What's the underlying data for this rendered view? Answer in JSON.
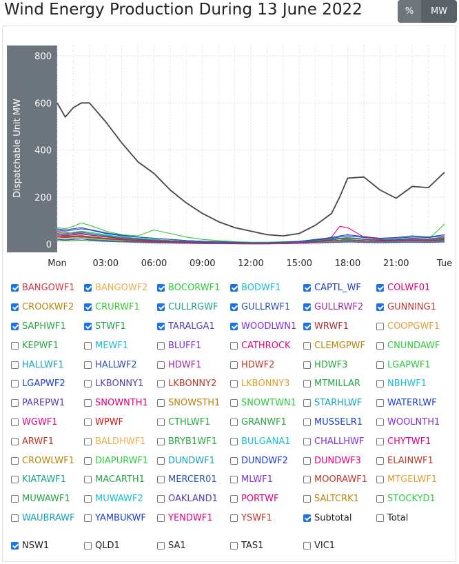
{
  "title": "Wind Energy Production During 13 June 2022",
  "toggle": {
    "percent_label": "%",
    "mw_label": "MW"
  },
  "chart_data": {
    "type": "line",
    "ylabel": "Dispatchable Unit MW",
    "ylim": [
      0,
      800
    ],
    "yticks": [
      0,
      200,
      400,
      600,
      800
    ],
    "x_ticks": [
      "Mon",
      "03:00",
      "06:00",
      "09:00",
      "12:00",
      "15:00",
      "18:00",
      "21:00",
      "Tue"
    ],
    "x_hours": [
      0,
      0.5,
      1,
      1.5,
      2,
      3,
      4,
      5,
      6,
      7,
      8,
      9,
      10,
      11,
      12,
      13,
      14,
      15,
      16,
      17,
      17.5,
      18,
      19,
      20,
      21,
      22,
      23,
      24
    ],
    "series": [
      {
        "name": "Subtotal",
        "color": "#444444",
        "values": [
          600,
          540,
          580,
          600,
          600,
          520,
          430,
          350,
          300,
          230,
          175,
          130,
          95,
          70,
          55,
          40,
          35,
          45,
          80,
          130,
          200,
          280,
          285,
          230,
          195,
          245,
          240,
          305
        ]
      },
      {
        "name": "BANGOWF1",
        "color": "#dc3545",
        "values": [
          55,
          50,
          45,
          50,
          45,
          35,
          30,
          25,
          20,
          15,
          12,
          10,
          8,
          6,
          5,
          5,
          6,
          8,
          12,
          18,
          22,
          25,
          20,
          18,
          20,
          25,
          22,
          30
        ]
      },
      {
        "name": "BANGOWF2",
        "color": "#f0ad4e",
        "values": [
          40,
          35,
          30,
          35,
          30,
          25,
          22,
          18,
          14,
          12,
          10,
          8,
          6,
          5,
          4,
          4,
          5,
          6,
          10,
          14,
          16,
          18,
          15,
          14,
          15,
          18,
          16,
          20
        ]
      },
      {
        "name": "BOCORWF1",
        "color": "#2ecc40",
        "values": [
          70,
          65,
          75,
          90,
          80,
          55,
          40,
          35,
          60,
          45,
          30,
          20,
          15,
          10,
          8,
          8,
          10,
          12,
          18,
          22,
          25,
          20,
          15,
          12,
          18,
          22,
          20,
          85
        ]
      },
      {
        "name": "BODWF1",
        "color": "#17c1d6",
        "values": [
          45,
          40,
          50,
          55,
          50,
          40,
          30,
          25,
          20,
          15,
          12,
          10,
          8,
          6,
          5,
          6,
          8,
          10,
          15,
          20,
          22,
          18,
          15,
          12,
          15,
          18,
          16,
          22
        ]
      },
      {
        "name": "CAPTL_WF",
        "color": "#1e40d0",
        "values": [
          60,
          55,
          60,
          65,
          60,
          45,
          35,
          30,
          25,
          20,
          15,
          12,
          10,
          8,
          6,
          6,
          8,
          12,
          18,
          25,
          30,
          35,
          28,
          22,
          25,
          30,
          28,
          35
        ]
      },
      {
        "name": "COLWF01",
        "color": "#e6007e",
        "values": [
          30,
          28,
          30,
          32,
          28,
          22,
          18,
          14,
          10,
          8,
          6,
          5,
          4,
          3,
          3,
          3,
          4,
          6,
          10,
          30,
          75,
          70,
          30,
          20,
          15,
          18,
          16,
          20
        ]
      },
      {
        "name": "CROOKWF2",
        "color": "#b8860b",
        "values": [
          35,
          30,
          32,
          35,
          30,
          25,
          20,
          16,
          12,
          10,
          8,
          6,
          5,
          4,
          3,
          3,
          4,
          6,
          10,
          14,
          16,
          18,
          15,
          12,
          14,
          16,
          15,
          18
        ]
      },
      {
        "name": "CRURWF1",
        "color": "#32cd32",
        "values": [
          25,
          22,
          25,
          28,
          25,
          20,
          16,
          12,
          10,
          8,
          6,
          5,
          4,
          3,
          2,
          2,
          3,
          5,
          8,
          10,
          12,
          14,
          12,
          10,
          12,
          14,
          12,
          15
        ]
      },
      {
        "name": "CULLRGWF",
        "color": "#17a589",
        "values": [
          20,
          18,
          20,
          22,
          20,
          16,
          12,
          10,
          8,
          6,
          5,
          4,
          3,
          2,
          2,
          2,
          3,
          4,
          6,
          8,
          10,
          12,
          10,
          8,
          10,
          12,
          10,
          12
        ]
      },
      {
        "name": "GULLRWF1",
        "color": "#2b50b0",
        "values": [
          65,
          60,
          65,
          70,
          62,
          48,
          38,
          30,
          25,
          20,
          15,
          12,
          10,
          8,
          6,
          6,
          8,
          12,
          20,
          28,
          35,
          40,
          32,
          25,
          28,
          35,
          30,
          40
        ]
      },
      {
        "name": "GULLRWF2",
        "color": "#9b2d9b",
        "values": [
          40,
          36,
          38,
          42,
          38,
          30,
          24,
          20,
          16,
          12,
          10,
          8,
          6,
          5,
          4,
          4,
          5,
          8,
          12,
          18,
          22,
          25,
          20,
          16,
          18,
          22,
          20,
          25
        ]
      },
      {
        "name": "GUNNING1",
        "color": "#c0392b",
        "values": [
          30,
          28,
          30,
          32,
          28,
          22,
          18,
          14,
          10,
          8,
          6,
          5,
          4,
          3,
          3,
          3,
          4,
          6,
          10,
          14,
          16,
          18,
          14,
          12,
          14,
          16,
          14,
          18
        ]
      },
      {
        "name": "SAPHWF1",
        "color": "#28a745",
        "values": [
          50,
          45,
          48,
          52,
          46,
          36,
          28,
          22,
          18,
          14,
          10,
          8,
          6,
          5,
          4,
          4,
          5,
          8,
          14,
          20,
          25,
          28,
          22,
          18,
          20,
          25,
          22,
          28
        ]
      },
      {
        "name": "STWF1",
        "color": "#1f9e3f",
        "values": [
          15,
          14,
          15,
          16,
          14,
          11,
          9,
          7,
          5,
          4,
          3,
          2,
          2,
          1,
          1,
          1,
          2,
          3,
          5,
          7,
          8,
          9,
          7,
          6,
          7,
          8,
          7,
          9
        ]
      },
      {
        "name": "TARALGA1",
        "color": "#5a3fb0",
        "values": [
          45,
          40,
          42,
          46,
          40,
          32,
          25,
          20,
          15,
          12,
          10,
          8,
          6,
          5,
          4,
          4,
          5,
          8,
          12,
          18,
          22,
          25,
          20,
          16,
          18,
          22,
          20,
          25
        ]
      },
      {
        "name": "WOODLWN1",
        "color": "#7b2fe0",
        "values": [
          20,
          18,
          20,
          22,
          18,
          14,
          11,
          9,
          7,
          5,
          4,
          3,
          2,
          2,
          1,
          1,
          2,
          3,
          5,
          7,
          8,
          9,
          7,
          6,
          7,
          8,
          7,
          9
        ]
      },
      {
        "name": "WRWF1",
        "color": "#b03030",
        "values": [
          35,
          32,
          34,
          36,
          32,
          25,
          20,
          16,
          12,
          10,
          8,
          6,
          5,
          4,
          3,
          3,
          4,
          6,
          10,
          14,
          16,
          18,
          15,
          12,
          14,
          16,
          15,
          18
        ]
      }
    ]
  },
  "legend": [
    {
      "label": "BANGOWF1",
      "color": "#dc3545",
      "checked": true
    },
    {
      "label": "BANGOWF2",
      "color": "#f0ad4e",
      "checked": true
    },
    {
      "label": "BOCORWF1",
      "color": "#2ecc40",
      "checked": true
    },
    {
      "label": "BODWF1",
      "color": "#17c1d6",
      "checked": true
    },
    {
      "label": "CAPTL_WF",
      "color": "#1e40d0",
      "checked": true
    },
    {
      "label": "COLWF01",
      "color": "#e6007e",
      "checked": true
    },
    {
      "label": "CROOKWF2",
      "color": "#b8860b",
      "checked": true
    },
    {
      "label": "CRURWF1",
      "color": "#32cd32",
      "checked": true
    },
    {
      "label": "CULLRGWF",
      "color": "#17a589",
      "checked": true
    },
    {
      "label": "GULLRWF1",
      "color": "#2b50b0",
      "checked": true
    },
    {
      "label": "GULLRWF2",
      "color": "#9b2d9b",
      "checked": true
    },
    {
      "label": "GUNNING1",
      "color": "#c0392b",
      "checked": true
    },
    {
      "label": "SAPHWF1",
      "color": "#28a745",
      "checked": true
    },
    {
      "label": "STWF1",
      "color": "#1f9e3f",
      "checked": true
    },
    {
      "label": "TARALGA1",
      "color": "#5a3fb0",
      "checked": true
    },
    {
      "label": "WOODLWN1",
      "color": "#7b2fe0",
      "checked": true
    },
    {
      "label": "WRWF1",
      "color": "#b03030",
      "checked": true
    },
    {
      "label": "COOPGWF1",
      "color": "#e0a030",
      "checked": false
    },
    {
      "label": "KEPWF1",
      "color": "#28a745",
      "checked": false
    },
    {
      "label": "MEWF1",
      "color": "#17c1d6",
      "checked": false
    },
    {
      "label": "BLUFF1",
      "color": "#7b2fe0",
      "checked": false
    },
    {
      "label": "CATHROCK",
      "color": "#e6007e",
      "checked": false
    },
    {
      "label": "CLEMGPWF",
      "color": "#b8860b",
      "checked": false
    },
    {
      "label": "CNUNDAWF",
      "color": "#2ecc40",
      "checked": false
    },
    {
      "label": "HALLWF1",
      "color": "#17a2b8",
      "checked": false
    },
    {
      "label": "HALLWF2",
      "color": "#2b50b0",
      "checked": false
    },
    {
      "label": "HDWF1",
      "color": "#9b2d9b",
      "checked": false
    },
    {
      "label": "HDWF2",
      "color": "#c0392b",
      "checked": false
    },
    {
      "label": "HDWF3",
      "color": "#28a745",
      "checked": false
    },
    {
      "label": "LGAPWF1",
      "color": "#2ecc40",
      "checked": false
    },
    {
      "label": "LGAPWF2",
      "color": "#1e40d0",
      "checked": false
    },
    {
      "label": "LKBONNY1",
      "color": "#5a3fb0",
      "checked": false
    },
    {
      "label": "LKBONNY2",
      "color": "#c0392b",
      "checked": false
    },
    {
      "label": "LKBONNY3",
      "color": "#e0a030",
      "checked": false
    },
    {
      "label": "MTMILLAR",
      "color": "#28a745",
      "checked": false
    },
    {
      "label": "NBHWF1",
      "color": "#17c1d6",
      "checked": false
    },
    {
      "label": "PAREPW1",
      "color": "#5a3fb0",
      "checked": false
    },
    {
      "label": "SNOWNTH1",
      "color": "#e6007e",
      "checked": false
    },
    {
      "label": "SNOWSTH1",
      "color": "#b8860b",
      "checked": false
    },
    {
      "label": "SNOWTWN1",
      "color": "#2ecc40",
      "checked": false
    },
    {
      "label": "STARHLWF",
      "color": "#17a2b8",
      "checked": false
    },
    {
      "label": "WATERLWF",
      "color": "#1e40d0",
      "checked": false
    },
    {
      "label": "WGWF1",
      "color": "#e6007e",
      "checked": false
    },
    {
      "label": "WPWF",
      "color": "#dc1010",
      "checked": false
    },
    {
      "label": "CTHLWF1",
      "color": "#28a745",
      "checked": false
    },
    {
      "label": "GRANWF1",
      "color": "#28a745",
      "checked": false
    },
    {
      "label": "MUSSELR1",
      "color": "#1e40d0",
      "checked": false
    },
    {
      "label": "WOOLNTH1",
      "color": "#7b2fe0",
      "checked": false
    },
    {
      "label": "ARWF1",
      "color": "#c0392b",
      "checked": false
    },
    {
      "label": "BALDHWF1",
      "color": "#f0ad4e",
      "checked": false
    },
    {
      "label": "BRYB1WF1",
      "color": "#28a745",
      "checked": false
    },
    {
      "label": "BULGANA1",
      "color": "#17c1d6",
      "checked": false
    },
    {
      "label": "CHALLHWF",
      "color": "#7b2fe0",
      "checked": false
    },
    {
      "label": "CHYTWF1",
      "color": "#e6007e",
      "checked": false
    },
    {
      "label": "CROWLWF1",
      "color": "#b8860b",
      "checked": false
    },
    {
      "label": "DIAPURWF1",
      "color": "#2ecc40",
      "checked": false
    },
    {
      "label": "DUNDWF1",
      "color": "#17a2b8",
      "checked": false
    },
    {
      "label": "DUNDWF2",
      "color": "#1e40d0",
      "checked": false
    },
    {
      "label": "DUNDWF3",
      "color": "#e6007e",
      "checked": false
    },
    {
      "label": "ELAINWF1",
      "color": "#c0392b",
      "checked": false
    },
    {
      "label": "KIATAWF1",
      "color": "#17a589",
      "checked": false
    },
    {
      "label": "MACARTH1",
      "color": "#28a745",
      "checked": false
    },
    {
      "label": "MERCER01",
      "color": "#2b50b0",
      "checked": false
    },
    {
      "label": "MLWF1",
      "color": "#7b2fe0",
      "checked": false
    },
    {
      "label": "MOORAWF1",
      "color": "#c0392b",
      "checked": false
    },
    {
      "label": "MTGELWF1",
      "color": "#e0a030",
      "checked": false
    },
    {
      "label": "MUWAWF1",
      "color": "#28a745",
      "checked": false
    },
    {
      "label": "MUWAWF2",
      "color": "#17c1d6",
      "checked": false
    },
    {
      "label": "OAKLAND1",
      "color": "#5a3fb0",
      "checked": false
    },
    {
      "label": "PORTWF",
      "color": "#e6007e",
      "checked": false
    },
    {
      "label": "SALTCRK1",
      "color": "#b8860b",
      "checked": false
    },
    {
      "label": "STOCKYD1",
      "color": "#2ecc40",
      "checked": false
    },
    {
      "label": "WAUBRAWF",
      "color": "#17a2b8",
      "checked": false
    },
    {
      "label": "YAMBUKWF",
      "color": "#1e40d0",
      "checked": false
    },
    {
      "label": "YENDWF1",
      "color": "#e6007e",
      "checked": false
    },
    {
      "label": "YSWF1",
      "color": "#c0392b",
      "checked": false
    },
    {
      "label": "Subtotal",
      "color": "#222222",
      "checked": true
    },
    {
      "label": "Total",
      "color": "#222222",
      "checked": false
    }
  ],
  "regions": [
    {
      "label": "NSW1",
      "checked": true
    },
    {
      "label": "QLD1",
      "checked": false
    },
    {
      "label": "SA1",
      "checked": false
    },
    {
      "label": "TAS1",
      "checked": false
    },
    {
      "label": "VIC1",
      "checked": false
    }
  ]
}
